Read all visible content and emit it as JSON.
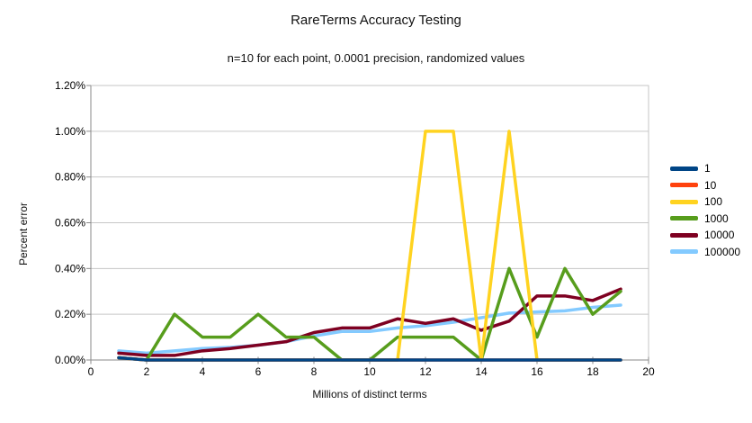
{
  "title": "RareTerms Accuracy Testing",
  "subtitle": "n=10 for each point, 0.0001 precision, randomized values",
  "chart_data": {
    "type": "line",
    "title": "RareTerms Accuracy Testing",
    "subtitle": "n=10 for each point, 0.0001 precision, randomized values",
    "xlabel": "Millions of distinct terms",
    "ylabel": "Percent error",
    "x": [
      1,
      2,
      3,
      4,
      5,
      6,
      7,
      8,
      9,
      10,
      11,
      12,
      13,
      14,
      15,
      16,
      17,
      18,
      19
    ],
    "xlim": [
      0,
      20
    ],
    "ylim": [
      0,
      1.2
    ],
    "xticks": [
      0,
      2,
      4,
      6,
      8,
      10,
      12,
      14,
      16,
      18,
      20
    ],
    "yticks": [
      0,
      0.2,
      0.4,
      0.6,
      0.8,
      1.0,
      1.2
    ],
    "ytick_labels": [
      "0.00%",
      "0.20%",
      "0.40%",
      "0.60%",
      "0.80%",
      "1.00%",
      "1.20%"
    ],
    "xtick_labels": [
      "0",
      "2",
      "4",
      "6",
      "8",
      "10",
      "12",
      "14",
      "16",
      "18",
      "20"
    ],
    "y_unit": "percent",
    "grid": true,
    "legend_position": "right",
    "series": [
      {
        "name": "1",
        "color": "#004586",
        "values": [
          0.01,
          0,
          0,
          0,
          0,
          0,
          0,
          0,
          0,
          0,
          0,
          0,
          0,
          0,
          0,
          0,
          0,
          0,
          0
        ]
      },
      {
        "name": "10",
        "color": "#ff420e",
        "values": [
          0.01,
          0,
          0,
          0,
          0,
          0,
          0,
          0,
          0,
          0,
          0,
          0,
          0,
          0,
          0,
          0,
          0,
          0,
          0
        ]
      },
      {
        "name": "100",
        "color": "#ffd320",
        "values": [
          0.01,
          0,
          0,
          0,
          0,
          0,
          0,
          0,
          0,
          0,
          0,
          1.0,
          1.0,
          0,
          1.0,
          0,
          0,
          0,
          0
        ]
      },
      {
        "name": "1000",
        "color": "#579d1c",
        "values": [
          0.01,
          0,
          0.2,
          0.1,
          0.1,
          0.2,
          0.1,
          0.1,
          0,
          0,
          0.1,
          0.1,
          0.1,
          0,
          0.4,
          0.1,
          0.4,
          0.2,
          0.3
        ]
      },
      {
        "name": "10000",
        "color": "#7e0021",
        "values": [
          0.03,
          0.02,
          0.02,
          0.04,
          0.05,
          0.065,
          0.08,
          0.12,
          0.14,
          0.14,
          0.18,
          0.16,
          0.18,
          0.13,
          0.17,
          0.28,
          0.28,
          0.26,
          0.31
        ]
      },
      {
        "name": "100000",
        "color": "#83caff",
        "values": [
          0.04,
          0.03,
          0.04,
          0.05,
          0.055,
          0.065,
          0.08,
          0.105,
          0.125,
          0.125,
          0.14,
          0.15,
          0.165,
          0.185,
          0.205,
          0.21,
          0.215,
          0.23,
          0.24
        ]
      }
    ],
    "draw_order": [
      "100000",
      "10000",
      "1000",
      "100",
      "10",
      "1"
    ]
  },
  "colors": {
    "background": "#ffffff",
    "gridline": "#c6c6c6",
    "axis": "#8a8a8a",
    "text": "#000000"
  }
}
